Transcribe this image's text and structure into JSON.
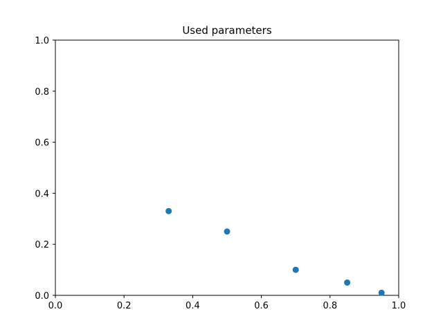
{
  "chart_data": {
    "type": "scatter",
    "title": "Used parameters",
    "xlabel": "",
    "ylabel": "",
    "xlim": [
      0,
      1
    ],
    "ylim": [
      0,
      1
    ],
    "x_ticks": [
      "0.0",
      "0.2",
      "0.4",
      "0.6",
      "0.8",
      "1.0"
    ],
    "y_ticks": [
      "0.0",
      "0.2",
      "0.4",
      "0.6",
      "0.8",
      "1.0"
    ],
    "grid": false,
    "legend": "none",
    "marker_color": "#1f77b4",
    "points": [
      {
        "x": 0.33,
        "y": 0.33
      },
      {
        "x": 0.5,
        "y": 0.25
      },
      {
        "x": 0.7,
        "y": 0.1
      },
      {
        "x": 0.85,
        "y": 0.05
      },
      {
        "x": 0.95,
        "y": 0.01
      }
    ]
  }
}
